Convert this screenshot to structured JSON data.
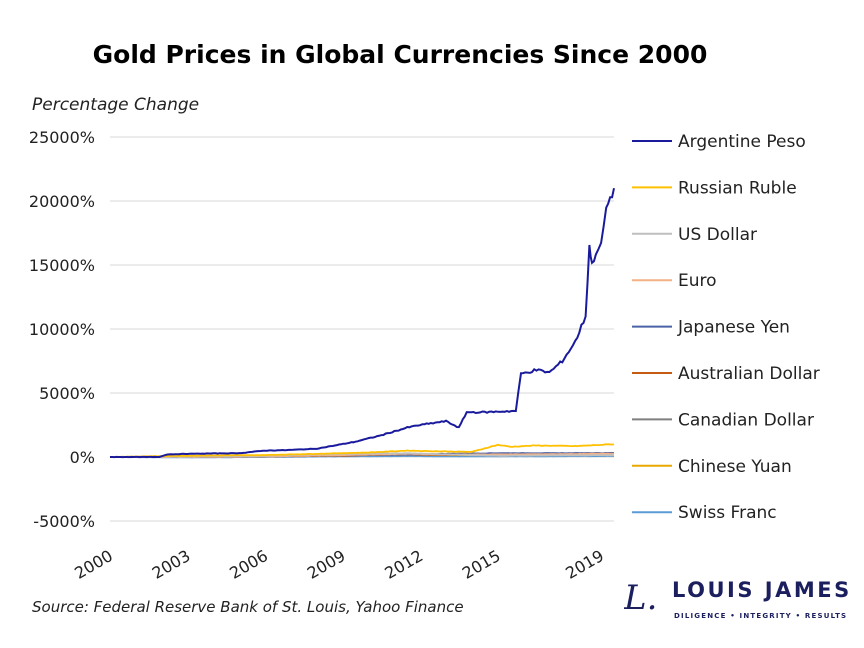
{
  "chart_data": {
    "type": "line",
    "title": "Gold Prices in Global Currencies Since 2000",
    "ylabel": "Percentage Change",
    "xlabel": "",
    "source": "Source: Federal Reserve Bank of St. Louis, Yahoo Finance",
    "ylim": [
      -5000,
      25000
    ],
    "xlim": [
      2000,
      2019.5
    ],
    "yticks": [
      "-5000%",
      "0%",
      "5000%",
      "10000%",
      "15000%",
      "20000%",
      "25000%"
    ],
    "ytick_values": [
      -5000,
      0,
      5000,
      10000,
      15000,
      20000,
      25000
    ],
    "xticks": [
      "2000",
      "2003",
      "2006",
      "2009",
      "2012",
      "2015",
      "2019"
    ],
    "xtick_values": [
      2000,
      2003,
      2006,
      2009,
      2012,
      2015,
      2019
    ],
    "grid": "horizontal",
    "legend_placement": "right",
    "series": [
      {
        "name": "Argentine Peso",
        "color": "#1a1a9c",
        "x": [
          2000,
          2001.9,
          2002.2,
          2003,
          2005,
          2006,
          2007,
          2008,
          2008.7,
          2009.5,
          2010.5,
          2011.5,
          2012,
          2013,
          2013.5,
          2013.8,
          2014.5,
          2015.7,
          2015.9,
          2016.5,
          2017,
          2017.5,
          2018,
          2018.4,
          2018.55,
          2018.65,
          2018.8,
          2019,
          2019.2,
          2019.35,
          2019.5
        ],
        "y": [
          0,
          0,
          200,
          250,
          300,
          500,
          550,
          650,
          900,
          1200,
          1700,
          2300,
          2500,
          2800,
          2300,
          3500,
          3500,
          3600,
          6500,
          6800,
          6600,
          7500,
          9000,
          11000,
          16500,
          15000,
          16000,
          16500,
          19500,
          20000,
          21000
        ]
      },
      {
        "name": "Russian Ruble",
        "color": "#ffc000",
        "x": [
          2000,
          2003,
          2006,
          2008,
          2010,
          2011.5,
          2012.5,
          2014,
          2015,
          2015.5,
          2016.5,
          2018,
          2019.5
        ],
        "y": [
          0,
          100,
          150,
          250,
          350,
          500,
          450,
          400,
          950,
          800,
          900,
          850,
          1000
        ]
      },
      {
        "name": "US Dollar",
        "color": "#bfbfbf",
        "x": [
          2000,
          2003,
          2006,
          2008,
          2011.5,
          2013,
          2015,
          2019.5
        ],
        "y": [
          0,
          30,
          100,
          200,
          300,
          200,
          100,
          150
        ]
      },
      {
        "name": "Euro",
        "color": "#f4b183",
        "x": [
          2000,
          2003,
          2006,
          2009,
          2011.5,
          2013,
          2015,
          2019.5
        ],
        "y": [
          0,
          0,
          50,
          150,
          250,
          200,
          200,
          250
        ]
      },
      {
        "name": "Japanese Yen",
        "color": "#4a62a8",
        "x": [
          2000,
          2003,
          2006,
          2009,
          2011.5,
          2013,
          2015,
          2019.5
        ],
        "y": [
          0,
          0,
          100,
          150,
          200,
          250,
          300,
          300
        ]
      },
      {
        "name": "Australian Dollar",
        "color": "#c55a11",
        "x": [
          2000,
          2003,
          2006,
          2009,
          2011.5,
          2013,
          2015,
          2019.5
        ],
        "y": [
          0,
          0,
          50,
          100,
          200,
          150,
          250,
          300
        ]
      },
      {
        "name": "Canadian Dollar",
        "color": "#7f7f7f",
        "x": [
          2000,
          2003,
          2006,
          2009,
          2011.5,
          2013,
          2015,
          2019.5
        ],
        "y": [
          0,
          0,
          50,
          120,
          200,
          180,
          250,
          280
        ]
      },
      {
        "name": "Chinese Yuan",
        "color": "#e8a800",
        "x": [
          2000,
          2003,
          2006,
          2009,
          2011.5,
          2013,
          2015,
          2019.5
        ],
        "y": [
          0,
          30,
          80,
          150,
          200,
          150,
          150,
          180
        ]
      },
      {
        "name": "Swiss Franc",
        "color": "#5b9bd5",
        "x": [
          2000,
          2003,
          2006,
          2009,
          2011.5,
          2013,
          2015,
          2019.5
        ],
        "y": [
          0,
          -30,
          0,
          50,
          80,
          50,
          50,
          80
        ]
      }
    ]
  },
  "logo": {
    "name": "LOUIS JAMES",
    "tagline": "DILIGENCE • INTEGRITY • RESULTS",
    "mark": "L."
  }
}
